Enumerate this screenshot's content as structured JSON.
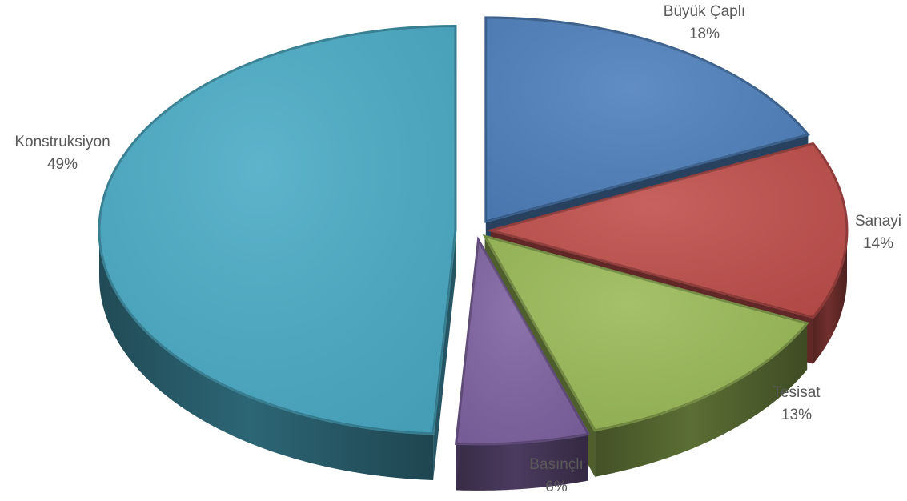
{
  "chart_data": {
    "type": "pie",
    "title": "",
    "three_d": true,
    "exploded": true,
    "categories": [
      "Büyük Çaplı",
      "Sanayi",
      "Tesisat",
      "Basınçlı",
      "Konstruksiyon"
    ],
    "values": [
      18,
      14,
      13,
      6,
      49
    ],
    "percent_labels": [
      "18%",
      "14%",
      "13%",
      "6%",
      "49%"
    ],
    "colors": [
      "#4F81BD",
      "#C0504D",
      "#9BBB59",
      "#8064A2",
      "#4BACC6"
    ],
    "legend": "none",
    "data_labels": "outside"
  }
}
